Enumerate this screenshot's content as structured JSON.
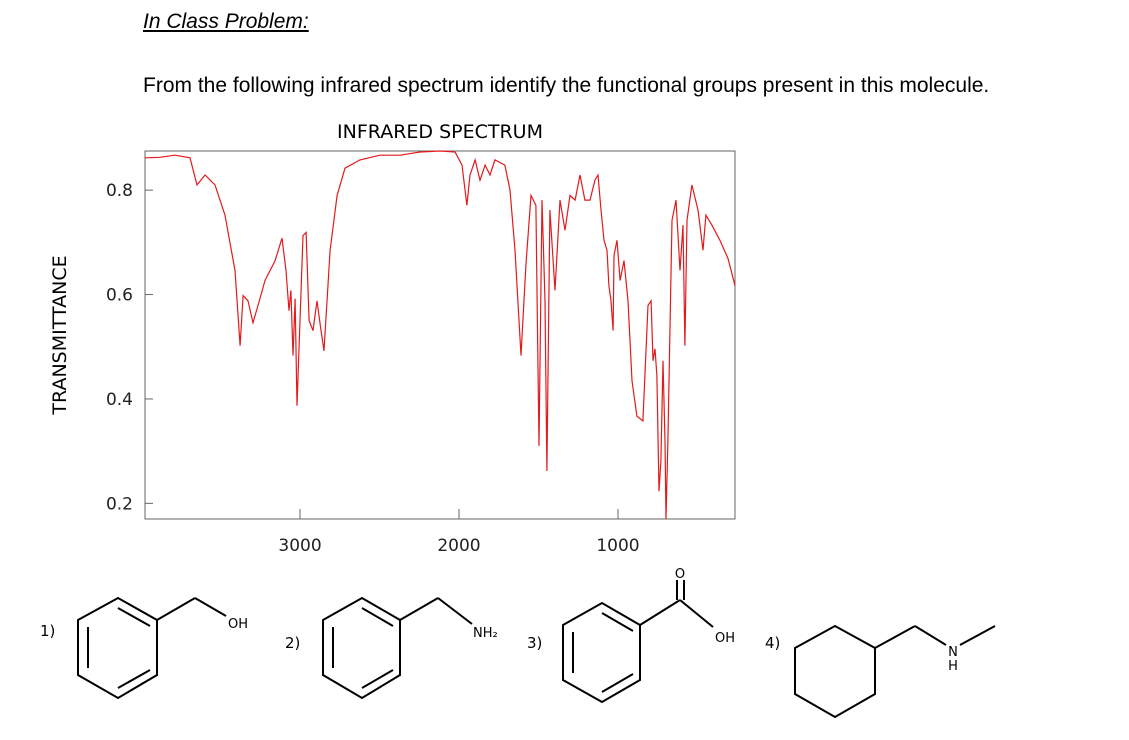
{
  "header": {
    "title": "In Class Problem:",
    "prompt": "From the following infrared spectrum identify the functional groups present in this molecule."
  },
  "chart_data": {
    "type": "line",
    "title": "INFRARED SPECTRUM",
    "y_label": "TRANSMITTANCE",
    "color": "#e31a1c",
    "x": [
      3975,
      3880,
      3786,
      3692,
      3648,
      3597,
      3535,
      3472,
      3409,
      3377,
      3358,
      3327,
      3296,
      3264,
      3220,
      3157,
      3113,
      3088,
      3069,
      3057,
      3044,
      3031,
      3019,
      3000,
      2981,
      2962,
      2943,
      2918,
      2893,
      2868,
      2849,
      2811,
      2767,
      2717,
      2623,
      2497,
      2371,
      2245,
      2119,
      2025,
      1981,
      1950,
      1931,
      1899,
      1868,
      1836,
      1805,
      1774,
      1711,
      1679,
      1648,
      1610,
      1579,
      1547,
      1516,
      1497,
      1478,
      1459,
      1447,
      1428,
      1396,
      1365,
      1333,
      1302,
      1270,
      1239,
      1208,
      1176,
      1145,
      1126,
      1107,
      1088,
      1069,
      1057,
      1044,
      1031,
      1025,
      1006,
      987,
      962,
      937,
      912,
      881,
      843,
      811,
      792,
      780,
      767,
      755,
      742,
      730,
      717,
      704,
      698,
      686,
      660,
      635,
      610,
      591,
      579,
      566,
      535,
      497,
      465,
      447,
      409,
      359,
      308,
      264
    ],
    "values": [
      0.862,
      0.863,
      0.867,
      0.862,
      0.81,
      0.829,
      0.81,
      0.752,
      0.646,
      0.502,
      0.598,
      0.588,
      0.546,
      0.579,
      0.627,
      0.665,
      0.708,
      0.646,
      0.569,
      0.608,
      0.483,
      0.592,
      0.387,
      0.55,
      0.713,
      0.719,
      0.55,
      0.531,
      0.588,
      0.531,
      0.492,
      0.685,
      0.79,
      0.842,
      0.858,
      0.867,
      0.867,
      0.873,
      0.875,
      0.873,
      0.848,
      0.771,
      0.829,
      0.858,
      0.819,
      0.848,
      0.829,
      0.858,
      0.848,
      0.8,
      0.685,
      0.483,
      0.656,
      0.79,
      0.771,
      0.31,
      0.781,
      0.588,
      0.262,
      0.762,
      0.608,
      0.781,
      0.723,
      0.79,
      0.781,
      0.829,
      0.781,
      0.781,
      0.819,
      0.829,
      0.762,
      0.704,
      0.685,
      0.617,
      0.588,
      0.531,
      0.675,
      0.704,
      0.627,
      0.665,
      0.588,
      0.435,
      0.367,
      0.358,
      0.579,
      0.588,
      0.473,
      0.496,
      0.444,
      0.223,
      0.281,
      0.473,
      0.319,
      0.17,
      0.319,
      0.742,
      0.781,
      0.646,
      0.733,
      0.502,
      0.742,
      0.81,
      0.762,
      0.685,
      0.752,
      0.733,
      0.704,
      0.669,
      0.617
    ],
    "xlim": [
      3975,
      264
    ],
    "ylim": [
      0.17,
      0.875
    ],
    "xticks": [
      3000,
      2000,
      1000
    ],
    "yticks": [
      0.8,
      0.6,
      0.4,
      0.2
    ]
  },
  "molecules": [
    {
      "number": "1)",
      "labels": [
        "OH"
      ]
    },
    {
      "number": "2)",
      "labels": [
        "NH₂"
      ]
    },
    {
      "number": "3)",
      "labels": [
        "O",
        "OH"
      ]
    },
    {
      "number": "4)",
      "labels": [
        "N",
        "H"
      ]
    }
  ]
}
